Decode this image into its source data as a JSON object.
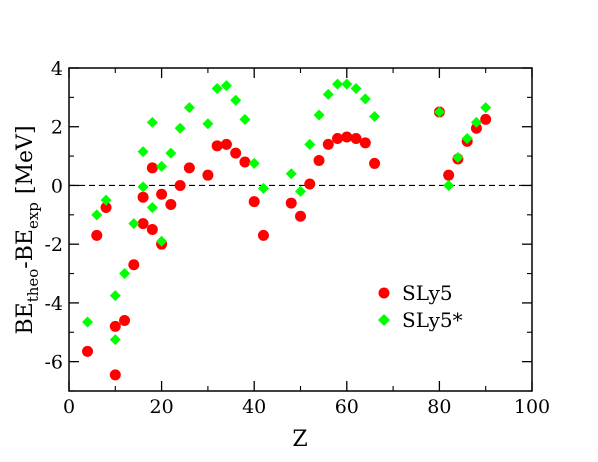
{
  "chart_data": {
    "type": "scatter",
    "xlabel": "Z",
    "ylabel": {
      "main1": "BE",
      "sub1": "theo",
      "sep": "-BE",
      "sub2": "exp",
      "unit": "[MeV]"
    },
    "xlim": [
      0,
      100
    ],
    "ylim": [
      -7,
      4
    ],
    "xticks": [
      0,
      20,
      40,
      60,
      80,
      100
    ],
    "yticks": [
      -6,
      -4,
      -2,
      0,
      2,
      4
    ],
    "xtick_labels": [
      "0",
      "20",
      "40",
      "60",
      "80",
      "100"
    ],
    "ytick_labels": [
      "-6",
      "-4",
      "-2",
      "0",
      "2",
      "4"
    ],
    "reference_line": {
      "y": 0,
      "style": "dashed"
    },
    "legend_position": "lower-right",
    "grid": false,
    "series": [
      {
        "name": "SLy5",
        "marker": "circle",
        "color": "#ff0000",
        "points": [
          [
            4,
            -5.65
          ],
          [
            6,
            -1.7
          ],
          [
            8,
            -0.75
          ],
          [
            10,
            -4.8
          ],
          [
            10,
            -6.45
          ],
          [
            12,
            -4.6
          ],
          [
            14,
            -2.7
          ],
          [
            16,
            -0.4
          ],
          [
            16,
            -1.3
          ],
          [
            18,
            -1.5
          ],
          [
            18,
            0.6
          ],
          [
            20,
            -2.0
          ],
          [
            20,
            -0.3
          ],
          [
            22,
            -0.65
          ],
          [
            24,
            0.0
          ],
          [
            26,
            0.6
          ],
          [
            30,
            0.35
          ],
          [
            32,
            1.35
          ],
          [
            34,
            1.4
          ],
          [
            36,
            1.1
          ],
          [
            38,
            0.8
          ],
          [
            40,
            -0.55
          ],
          [
            42,
            -1.7
          ],
          [
            48,
            -0.6
          ],
          [
            50,
            -1.05
          ],
          [
            52,
            0.05
          ],
          [
            54,
            0.85
          ],
          [
            56,
            1.4
          ],
          [
            58,
            1.6
          ],
          [
            60,
            1.65
          ],
          [
            62,
            1.6
          ],
          [
            64,
            1.45
          ],
          [
            66,
            0.75
          ],
          [
            80,
            2.5
          ],
          [
            82,
            0.35
          ],
          [
            84,
            0.9
          ],
          [
            86,
            1.5
          ],
          [
            88,
            1.95
          ],
          [
            90,
            2.25
          ]
        ]
      },
      {
        "name": "SLy5*",
        "marker": "diamond",
        "color": "#00ff00",
        "points": [
          [
            4,
            -4.65
          ],
          [
            6,
            -1.0
          ],
          [
            8,
            -0.5
          ],
          [
            10,
            -3.75
          ],
          [
            10,
            -5.25
          ],
          [
            12,
            -3.0
          ],
          [
            14,
            -1.3
          ],
          [
            16,
            1.15
          ],
          [
            16,
            -0.05
          ],
          [
            18,
            2.15
          ],
          [
            18,
            -0.75
          ],
          [
            20,
            -1.9
          ],
          [
            20,
            0.65
          ],
          [
            22,
            1.1
          ],
          [
            24,
            1.95
          ],
          [
            26,
            2.65
          ],
          [
            30,
            2.1
          ],
          [
            32,
            3.3
          ],
          [
            34,
            3.4
          ],
          [
            36,
            2.9
          ],
          [
            38,
            2.25
          ],
          [
            40,
            0.75
          ],
          [
            42,
            -0.1
          ],
          [
            48,
            0.4
          ],
          [
            50,
            -0.2
          ],
          [
            52,
            1.4
          ],
          [
            54,
            2.4
          ],
          [
            56,
            3.1
          ],
          [
            58,
            3.45
          ],
          [
            60,
            3.45
          ],
          [
            62,
            3.3
          ],
          [
            64,
            2.95
          ],
          [
            66,
            2.35
          ],
          [
            80,
            2.5
          ],
          [
            82,
            0.0
          ],
          [
            84,
            0.95
          ],
          [
            86,
            1.6
          ],
          [
            88,
            2.15
          ],
          [
            90,
            2.65
          ]
        ]
      }
    ]
  }
}
